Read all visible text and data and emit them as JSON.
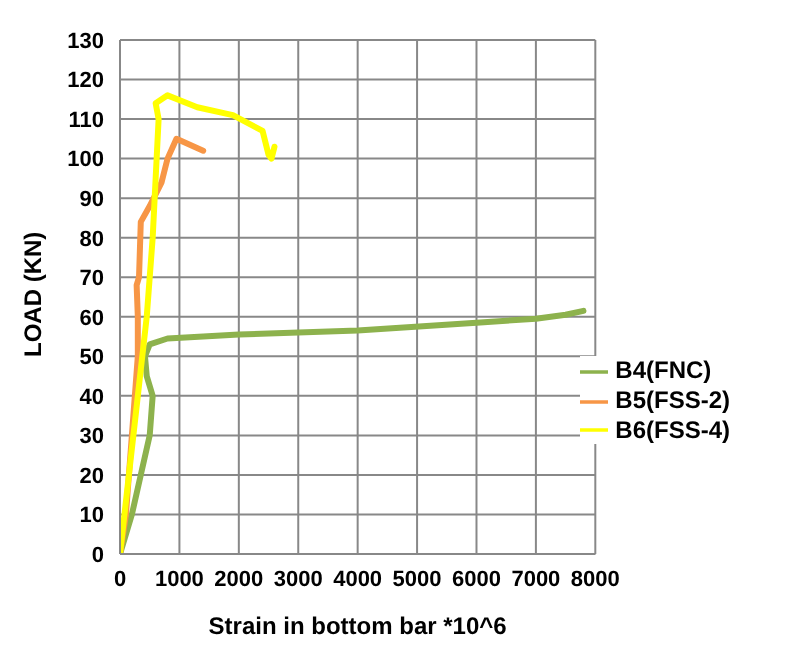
{
  "chart_data": {
    "type": "line",
    "xlabel": "Strain in bottom bar *10^6",
    "ylabel": "LOAD (KN)",
    "xlim": [
      0,
      8000
    ],
    "xticks": [
      0,
      1000,
      2000,
      3000,
      4000,
      5000,
      6000,
      7000,
      8000
    ],
    "ylim": [
      0,
      130
    ],
    "yticks": [
      0,
      10,
      20,
      30,
      40,
      50,
      60,
      70,
      80,
      90,
      100,
      110,
      120,
      130
    ],
    "grid": true,
    "legend": "right",
    "marker": "none",
    "line_style": "solid",
    "series": [
      {
        "name": "B4(FNC)",
        "color": "#8db24d",
        "x": [
          0,
          200,
          350,
          500,
          550,
          450,
          420,
          500,
          800,
          2000,
          4000,
          6000,
          7000,
          7500,
          7800
        ],
        "values": [
          0,
          10,
          20,
          30,
          40,
          45,
          50,
          53,
          54.5,
          55.5,
          56.5,
          58.5,
          59.5,
          60.5,
          61.5
        ]
      },
      {
        "name": "B5(FSS-2)",
        "color": "#f79646",
        "x": [
          0,
          100,
          200,
          300,
          300,
          280,
          320,
          350,
          500,
          700,
          800,
          950,
          1400
        ],
        "values": [
          0,
          10,
          30,
          50,
          60,
          68,
          70,
          84,
          88,
          94,
          100,
          105,
          102
        ]
      },
      {
        "name": "B6(FSS-4)",
        "color": "#ffff00",
        "x": [
          0,
          150,
          300,
          450,
          550,
          600,
          650,
          600,
          800,
          1300,
          1900,
          2400,
          2500,
          2550,
          2600
        ],
        "values": [
          0,
          20,
          40,
          60,
          80,
          95,
          110,
          114,
          116,
          113,
          111,
          107,
          101,
          100,
          103
        ]
      }
    ]
  }
}
